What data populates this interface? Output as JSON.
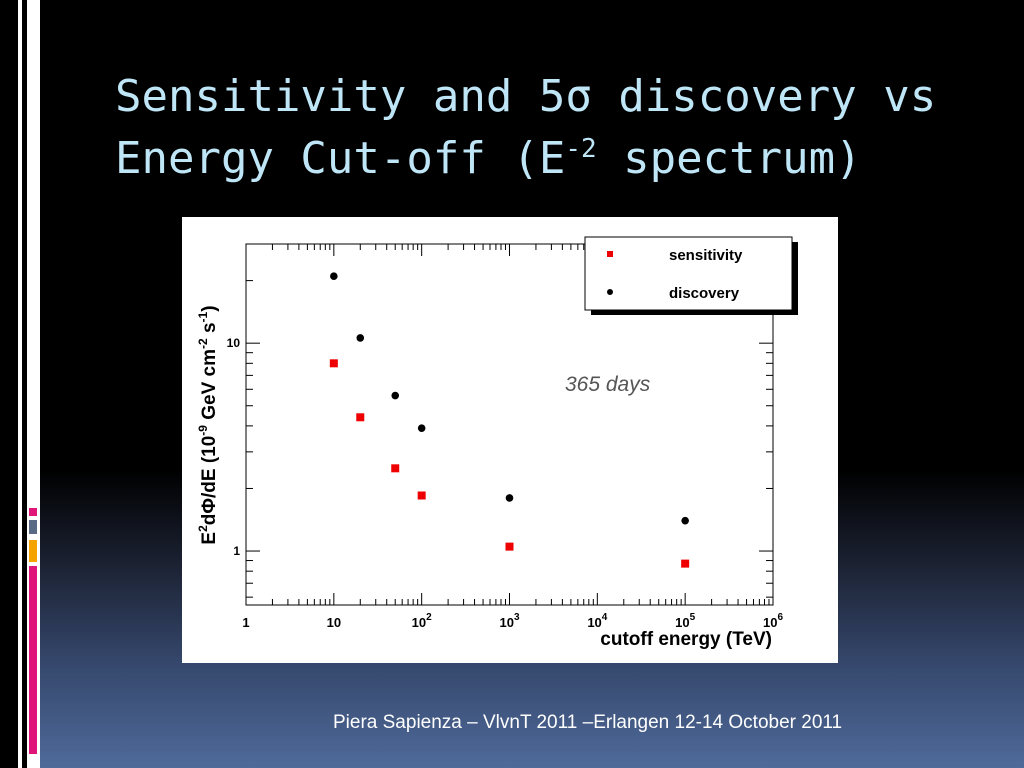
{
  "slide": {
    "title_line1": "Sensitivity and 5σ discovery vs",
    "title_line2_pre": "Energy Cut-off (E",
    "title_sup": "-2",
    "title_line2_post": " spectrum)",
    "footer": "Piera Sapienza – VlvnT 2011 –Erlangen 12-14 October 2011",
    "accent_colors": [
      "#e0157a",
      "#5a6a85",
      "#f4a300",
      "#e0157a"
    ]
  },
  "chart_data": {
    "type": "scatter",
    "xlabel": "cutoff energy (TeV)",
    "ylabel_parts": [
      "E",
      "2",
      "dΦ/dE (10",
      "-9",
      " GeV cm",
      "-2",
      " s",
      "-1",
      ")"
    ],
    "x_scale": "log",
    "y_scale": "log",
    "xlim": [
      1,
      1000000
    ],
    "ylim": [
      0.55,
      30
    ],
    "x_tick_labels": [
      {
        "value": 1,
        "base": "1",
        "exp": ""
      },
      {
        "value": 10,
        "base": "10",
        "exp": ""
      },
      {
        "value": 100,
        "base": "10",
        "exp": "2"
      },
      {
        "value": 1000,
        "base": "10",
        "exp": "3"
      },
      {
        "value": 10000,
        "base": "10",
        "exp": "4"
      },
      {
        "value": 100000,
        "base": "10",
        "exp": "5"
      },
      {
        "value": 1000000,
        "base": "10",
        "exp": "6"
      }
    ],
    "y_tick_labels": [
      {
        "value": 1,
        "label": "1"
      },
      {
        "value": 10,
        "label": "10"
      }
    ],
    "annotation": "365 days",
    "legend_position": "top-right",
    "grid": false,
    "series": [
      {
        "name": "sensitivity",
        "marker": "square",
        "color": "#ee0000",
        "x": [
          10,
          20,
          50,
          100,
          1000,
          100000
        ],
        "y": [
          8.0,
          4.4,
          2.5,
          1.85,
          1.05,
          0.87
        ]
      },
      {
        "name": "discovery",
        "marker": "circle",
        "color": "#000000",
        "x": [
          10,
          20,
          50,
          100,
          1000,
          100000
        ],
        "y": [
          21.0,
          10.6,
          5.6,
          3.9,
          1.8,
          1.4
        ]
      }
    ]
  }
}
